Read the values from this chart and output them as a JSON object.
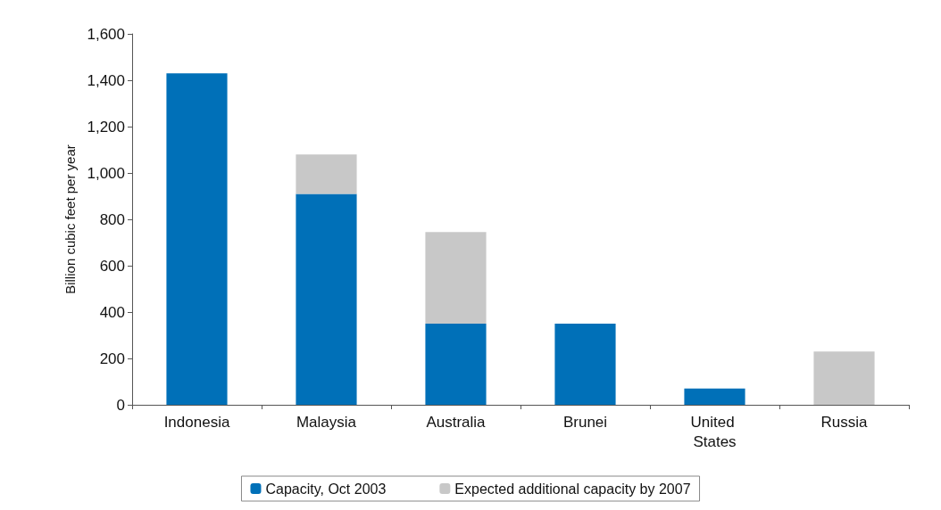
{
  "chart_data": {
    "type": "bar",
    "stacked": true,
    "ylabel": "Billion cubic feet per year",
    "categories": [
      "Indonesia",
      "Malaysia",
      "Australia",
      "Brunei",
      "United States",
      "Russia"
    ],
    "series": [
      {
        "name": "Capacity, Oct 2003",
        "color": "#0070b8",
        "values": [
          1430,
          910,
          350,
          350,
          70,
          0
        ]
      },
      {
        "name": "Expected additional capacity by 2007",
        "color": "#c8c8c8",
        "values": [
          0,
          170,
          395,
          0,
          0,
          230
        ]
      }
    ],
    "ylim": [
      0,
      1600
    ],
    "yticks": [
      0,
      200,
      400,
      600,
      800,
      {
        "value": 1000,
        "label": "1,000"
      },
      {
        "value": 1200,
        "label": "1,200"
      },
      {
        "value": 1400,
        "label": "1,400"
      },
      {
        "value": 1600,
        "label": "1,600"
      }
    ],
    "grid": false,
    "legend": "bottom"
  }
}
